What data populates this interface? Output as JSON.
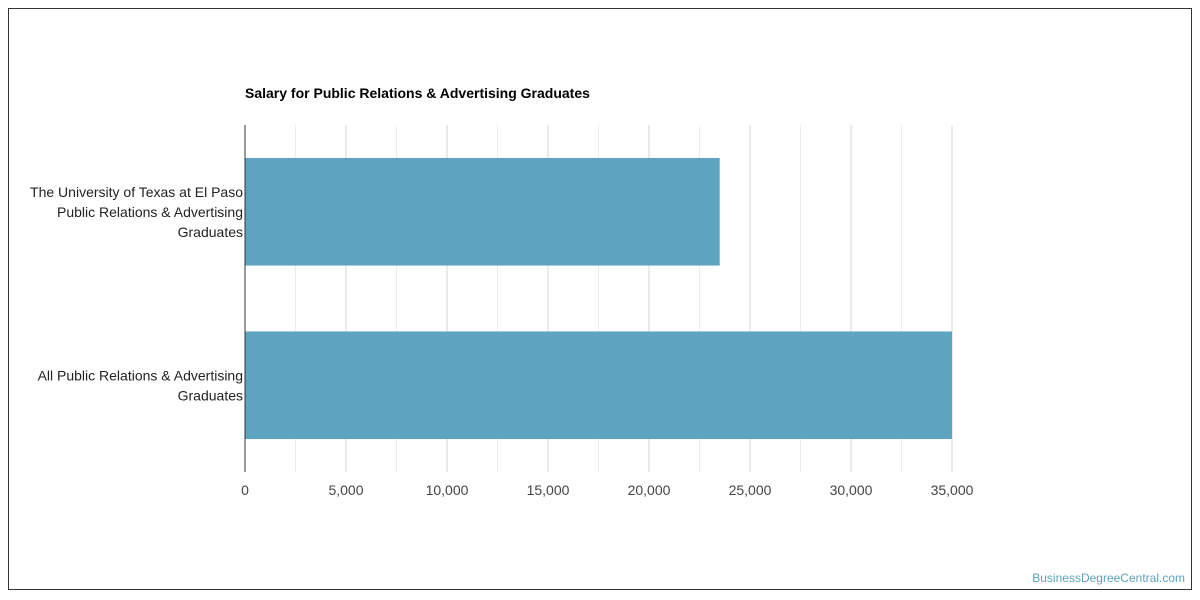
{
  "chart_data": {
    "type": "bar",
    "orientation": "horizontal",
    "title": "Salary for Public Relations & Advertising Graduates",
    "categories": [
      [
        "The University of Texas at El Paso",
        "Public Relations & Advertising",
        "Graduates"
      ],
      [
        "All Public Relations & Advertising",
        "Graduates"
      ]
    ],
    "values": [
      23500,
      35000
    ],
    "xlim": [
      0,
      35000
    ],
    "xticks": [
      "0",
      "5,000",
      "10,000",
      "15,000",
      "20,000",
      "25,000",
      "30,000",
      "35,000"
    ],
    "xtick_values": [
      0,
      5000,
      10000,
      15000,
      20000,
      25000,
      30000,
      35000
    ],
    "bar_color": "#5ea3c0",
    "grid": true
  },
  "watermark": "BusinessDegreeCentral.com"
}
